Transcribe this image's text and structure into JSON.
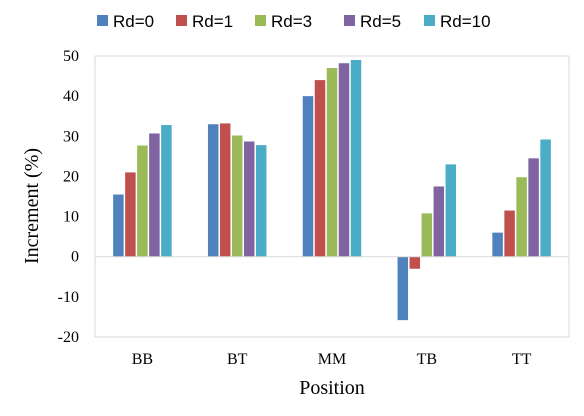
{
  "chart_data": {
    "type": "bar",
    "title": "",
    "xlabel": "Position",
    "ylabel": "Increment (%)",
    "categories": [
      "BB",
      "BT",
      "MM",
      "TB",
      "TT"
    ],
    "ylim": [
      -20,
      50
    ],
    "yticks": [
      -20,
      -10,
      0,
      10,
      20,
      30,
      40,
      50
    ],
    "grid": false,
    "legend_position": "top",
    "series": [
      {
        "name": "Rd=0",
        "color": "#4f81bd",
        "values": [
          15.5,
          33.0,
          40.0,
          -15.8,
          6.0
        ]
      },
      {
        "name": "Rd=1",
        "color": "#c0504d",
        "values": [
          21.0,
          33.2,
          44.0,
          -3.0,
          11.5
        ]
      },
      {
        "name": "Rd=3",
        "color": "#9bbb59",
        "values": [
          27.7,
          30.2,
          47.0,
          10.8,
          19.8
        ]
      },
      {
        "name": "Rd=5",
        "color": "#8064a2",
        "values": [
          30.7,
          28.7,
          48.2,
          17.5,
          24.5
        ]
      },
      {
        "name": "Rd=10",
        "color": "#4bacc6",
        "values": [
          32.8,
          27.8,
          49.0,
          23.0,
          29.2
        ]
      }
    ]
  }
}
